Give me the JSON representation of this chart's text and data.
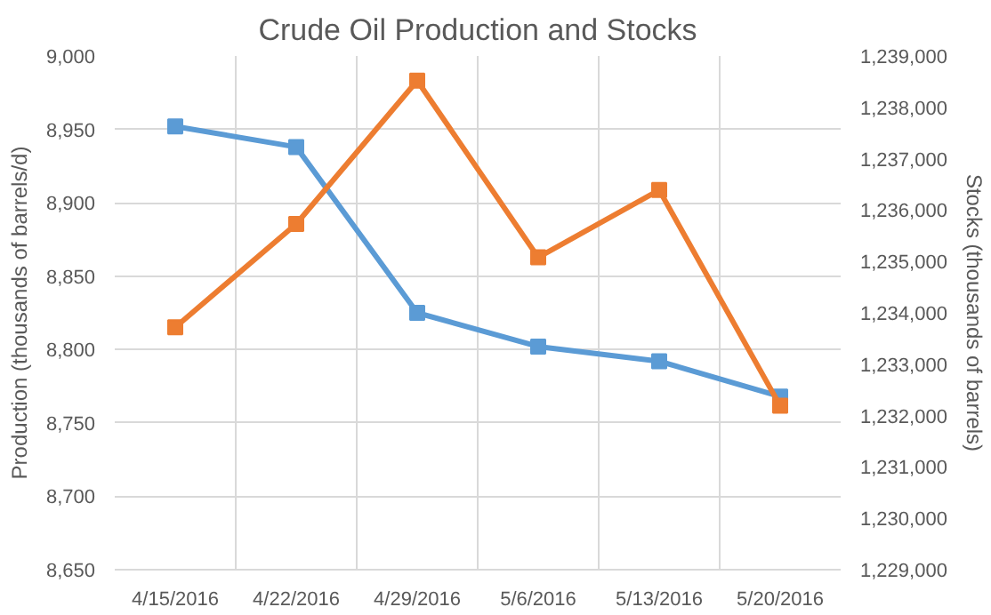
{
  "chart_data": {
    "type": "line",
    "title": "Crude Oil Production and Stocks",
    "ylabel": "Production (thousands of barrels/d)",
    "y2label": "Stocks (thousands of barrels)",
    "categories": [
      "4/15/2016",
      "4/22/2016",
      "4/29/2016",
      "5/6/2016",
      "5/13/2016",
      "5/20/2016"
    ],
    "series": [
      {
        "color": "#5b9bd5",
        "values": [
          8952,
          8938,
          8825,
          8802,
          8792,
          8768
        ]
      },
      {
        "color": "#ed7d31",
        "axis": "y2",
        "values": [
          1233720,
          1235730,
          1238520,
          1235080,
          1236390,
          1232190
        ]
      }
    ],
    "ylim": [
      8650,
      9000
    ],
    "yticks": [
      {
        "value": 8650,
        "label": "8,650"
      },
      {
        "value": 8700,
        "label": "8,700"
      },
      {
        "value": 8750,
        "label": "8,750"
      },
      {
        "value": 8800,
        "label": "8,800"
      },
      {
        "value": 8850,
        "label": "8,850"
      },
      {
        "value": 8900,
        "label": "8,900"
      },
      {
        "value": 8950,
        "label": "8,950"
      },
      {
        "value": 9000,
        "label": "9,000"
      }
    ],
    "y2lim": [
      1229000,
      1239000
    ],
    "y2ticks": [
      {
        "value": 1229000,
        "label": "1,229,000"
      },
      {
        "value": 1230000,
        "label": "1,230,000"
      },
      {
        "value": 1231000,
        "label": "1,231,000"
      },
      {
        "value": 1232000,
        "label": "1,232,000"
      },
      {
        "value": 1233000,
        "label": "1,233,000"
      },
      {
        "value": 1234000,
        "label": "1,234,000"
      },
      {
        "value": 1235000,
        "label": "1,235,000"
      },
      {
        "value": 1236000,
        "label": "1,236,000"
      },
      {
        "value": 1237000,
        "label": "1,237,000"
      },
      {
        "value": 1238000,
        "label": "1,238,000"
      },
      {
        "value": 1239000,
        "label": "1,239,000"
      }
    ],
    "grid": true,
    "marker": "square",
    "line_style": "solid"
  }
}
